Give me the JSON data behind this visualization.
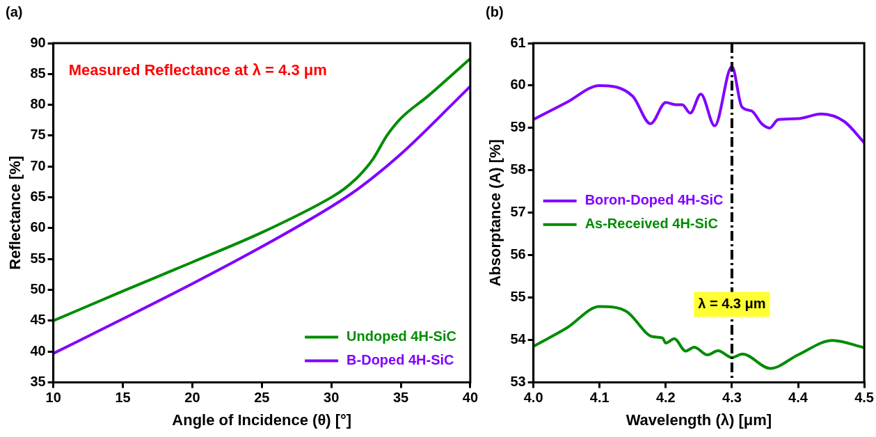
{
  "chart_data": [
    {
      "type": "line",
      "title": "(a)",
      "xlabel": "Angle of Incidence (θ) [°]",
      "ylabel": "Reflectance [%]",
      "annotations": [
        "Measured Reflectance at λ = 4.3 μm"
      ],
      "legend": "bottom right",
      "xlim": [
        10,
        40
      ],
      "xticks": [
        10,
        15,
        20,
        25,
        30,
        35,
        40
      ],
      "ylim": [
        35,
        90
      ],
      "yticks": [
        35,
        40,
        45,
        50,
        55,
        60,
        65,
        70,
        75,
        80,
        85,
        90
      ],
      "series": [
        {
          "name": "Undoped 4H-SiC",
          "color": "#008c00",
          "x": [
            10,
            15,
            20,
            25,
            30,
            31,
            32,
            33,
            34,
            35,
            37,
            40
          ],
          "values": [
            45,
            49.8,
            54.5,
            59.3,
            65,
            66.5,
            68.5,
            71.2,
            75,
            77.8,
            81.5,
            87.5
          ]
        },
        {
          "name": "B-Doped 4H-SiC",
          "color": "#8000ff",
          "x": [
            10,
            15,
            20,
            25,
            30,
            32,
            35,
            40
          ],
          "values": [
            39.7,
            45.3,
            51,
            57,
            63.5,
            66.5,
            72,
            83
          ]
        }
      ]
    },
    {
      "type": "line",
      "title": "(b)",
      "xlabel": "Wavelength (λ) [μm]",
      "ylabel": "Absorptance (A) [%]",
      "legend": "left",
      "xlim": [
        4.0,
        4.5
      ],
      "xticks": [
        {
          "value": 4.0,
          "label": "4.0"
        },
        4.1,
        4.2,
        4.3,
        4.4,
        {
          "value": 4.5,
          "label": "4.5"
        }
      ],
      "ylim": [
        53,
        61
      ],
      "yticks": [
        53,
        54,
        55,
        56,
        57,
        58,
        59,
        60,
        61
      ],
      "ref_lines": [
        {
          "axis": "x",
          "value": 4.3,
          "label": "λ = 4.3 μm",
          "color": "#000000",
          "line_style": "dashdot"
        }
      ],
      "series": [
        {
          "name": "Boron-Doped 4H-SiC",
          "color": "#8000ff",
          "x": [
            4.0,
            4.05,
            4.1,
            4.15,
            4.177,
            4.2,
            4.215,
            4.225,
            4.237,
            4.253,
            4.274,
            4.3,
            4.315,
            4.33,
            4.345,
            4.357,
            4.37,
            4.4,
            4.435,
            4.47,
            4.5
          ],
          "values": [
            59.2,
            59.6,
            60.0,
            59.75,
            59.1,
            59.6,
            59.55,
            59.55,
            59.35,
            59.8,
            59.05,
            60.45,
            59.5,
            59.4,
            59.1,
            59.0,
            59.2,
            59.22,
            59.33,
            59.15,
            58.65
          ]
        },
        {
          "name": "As-Received 4H-SiC",
          "color": "#008c00",
          "x": [
            4.0,
            4.05,
            4.1,
            4.14,
            4.18,
            4.195,
            4.2,
            4.213,
            4.23,
            4.243,
            4.263,
            4.279,
            4.3,
            4.316,
            4.358,
            4.4,
            4.452,
            4.5
          ],
          "values": [
            53.85,
            54.28,
            54.79,
            54.68,
            54.08,
            54.05,
            53.93,
            54.03,
            53.74,
            53.83,
            53.65,
            53.75,
            53.59,
            53.67,
            53.33,
            53.65,
            53.99,
            53.82
          ]
        }
      ]
    }
  ]
}
